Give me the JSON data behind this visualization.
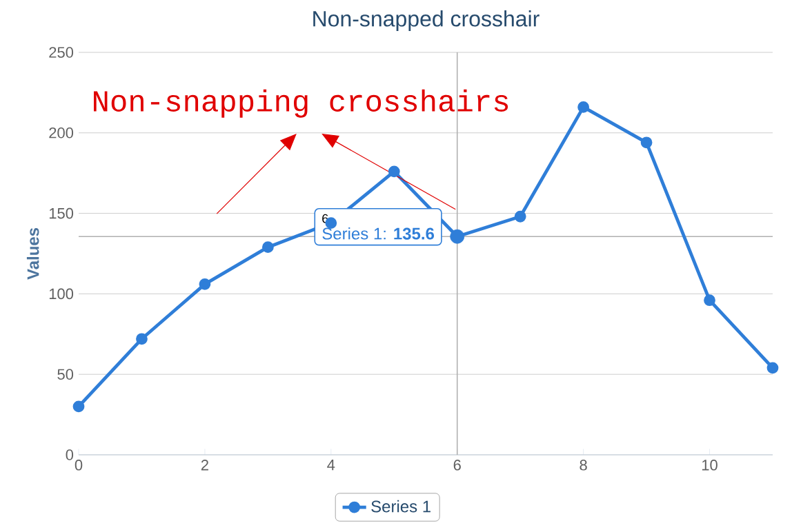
{
  "chart_data": {
    "type": "line",
    "title": "Non-snapped crosshair",
    "ylabel": "Values",
    "x": [
      0,
      1,
      2,
      3,
      4,
      5,
      6,
      7,
      8,
      9,
      10,
      11
    ],
    "series": [
      {
        "name": "Series 1",
        "color": "#2f7ed8",
        "values": [
          30,
          72,
          106,
          129,
          144,
          176,
          135.6,
          148,
          216,
          194,
          96,
          54
        ]
      }
    ],
    "xlim": [
      0,
      11
    ],
    "xticks": [
      0,
      2,
      4,
      6,
      8,
      10
    ],
    "ylim": [
      0,
      250
    ],
    "yticks": [
      0,
      50,
      100,
      150,
      200,
      250
    ],
    "grid": "y",
    "legend": "bottom",
    "marker": "circle",
    "line_style": "solid",
    "ref_lines": [
      {
        "axis": "x",
        "value": 6,
        "color": "#b0b0b0"
      },
      {
        "axis": "y",
        "value": 135.6,
        "color": "#b0b0b0"
      }
    ],
    "annotations": [
      "Non-snapping crosshairs",
      "6",
      "Series 1: **135.6**"
    ]
  }
}
